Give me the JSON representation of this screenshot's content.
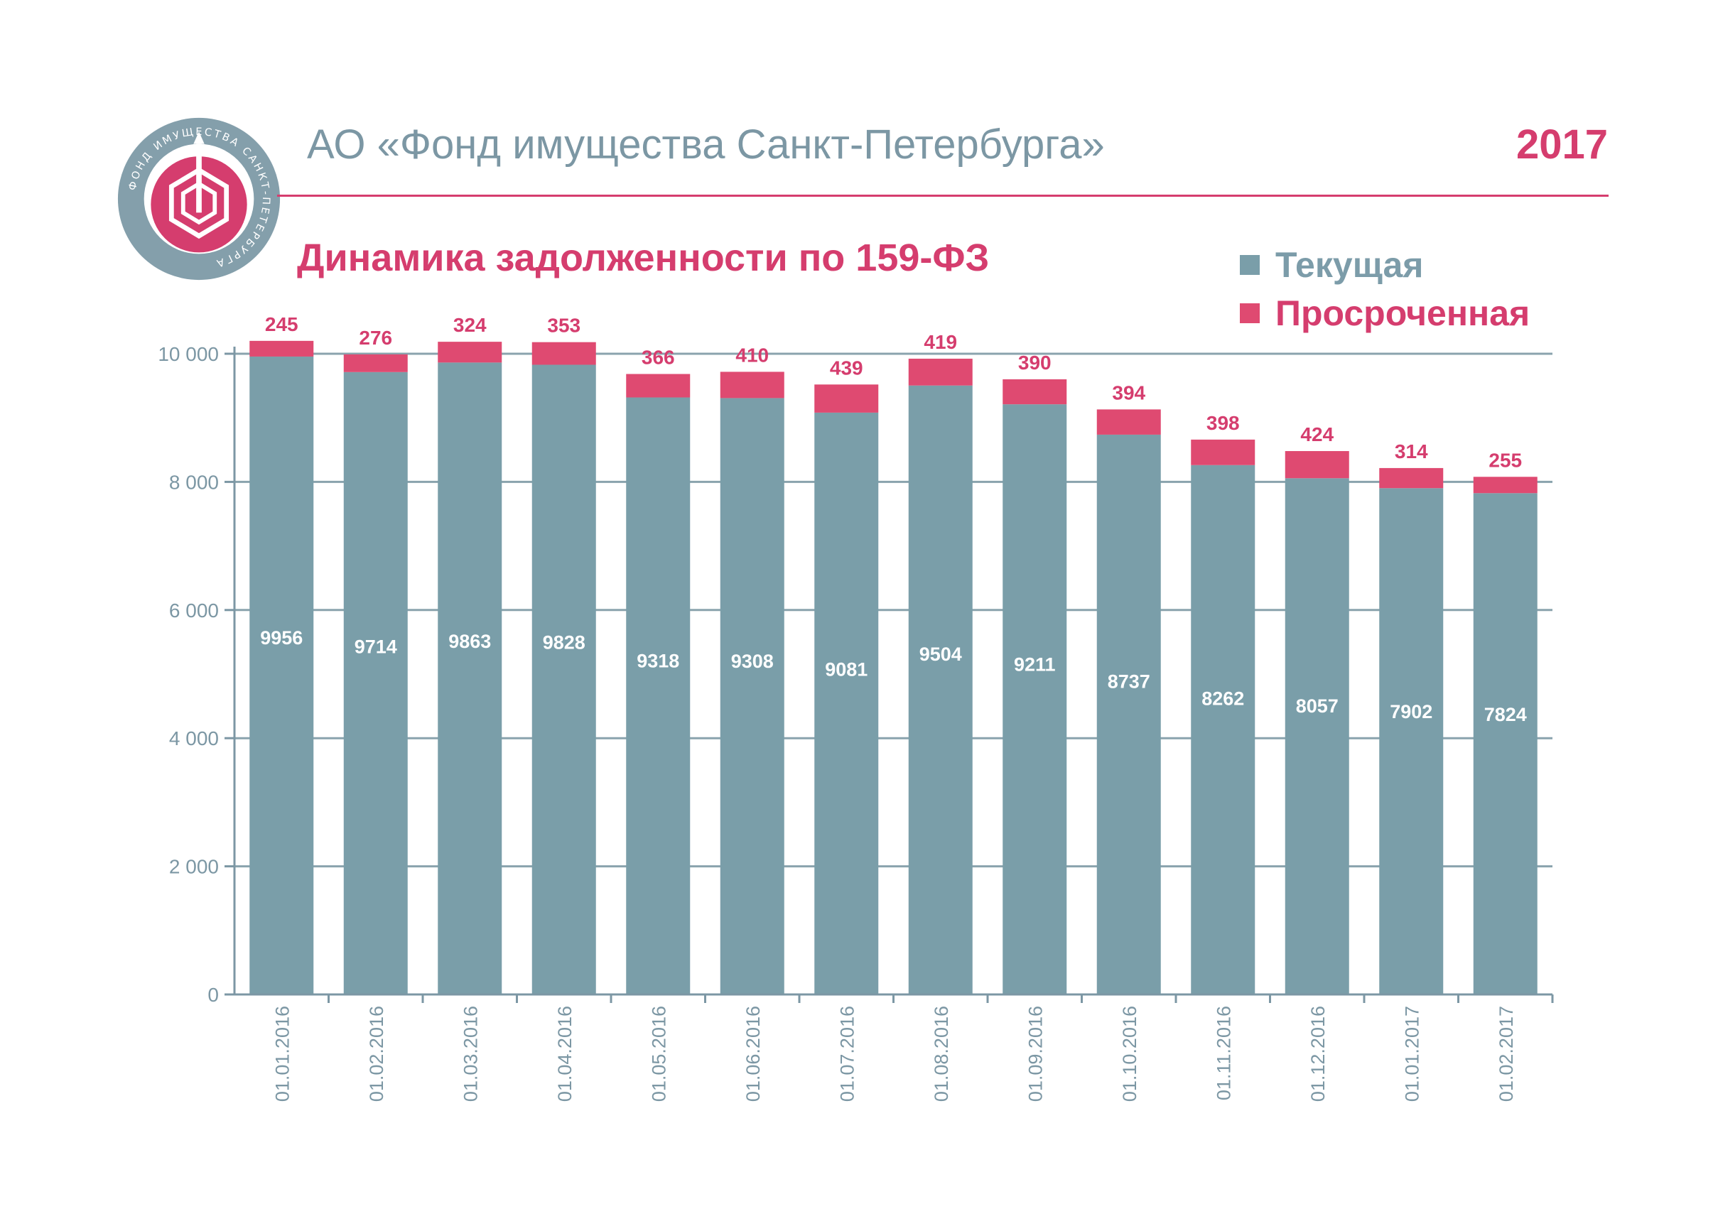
{
  "header": {
    "org_title": "АО «Фонд имущества Санкт-Петербурга»",
    "year": "2017",
    "logo_text": "ФОНД ИМУЩЕСТВА САНКТ-ПЕТЕРБУРГА"
  },
  "colors": {
    "current": "#7a9ea9",
    "overdue": "#df4a71",
    "accent": "#d53d6e",
    "axis": "#7c97a4",
    "grid": "#8aa3ad"
  },
  "chart_data": {
    "type": "bar",
    "stacked": true,
    "title": "Динамика задолженности по 159-ФЗ",
    "xlabel": "",
    "ylabel": "",
    "ylim": [
      0,
      10000
    ],
    "yticks": [
      0,
      2000,
      4000,
      6000,
      8000,
      10000
    ],
    "ytick_labels": [
      "0",
      "2 000",
      "4 000",
      "6 000",
      "8 000",
      "10 000"
    ],
    "grid": true,
    "legend_position": "top-right",
    "categories": [
      "01.01.2016",
      "01.02.2016",
      "01.03.2016",
      "01.04.2016",
      "01.05.2016",
      "01.06.2016",
      "01.07.2016",
      "01.08.2016",
      "01.09.2016",
      "01.10.2016",
      "01.11.2016",
      "01.12.2016",
      "01.01.2017",
      "01.02.2017"
    ],
    "series": [
      {
        "name": "Текущая",
        "values": [
          9956,
          9714,
          9863,
          9828,
          9318,
          9308,
          9081,
          9504,
          9211,
          8737,
          8262,
          8057,
          7902,
          7824
        ]
      },
      {
        "name": "Просроченная",
        "values": [
          245,
          276,
          324,
          353,
          366,
          410,
          439,
          419,
          390,
          394,
          398,
          424,
          314,
          255
        ]
      }
    ]
  }
}
